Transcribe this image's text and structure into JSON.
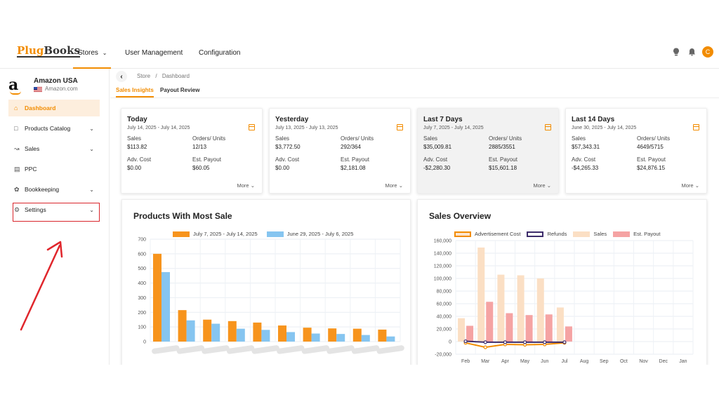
{
  "topnav": {
    "logo_part1": "Plug",
    "logo_part2": "Books",
    "stores_label": "Stores",
    "user_management_label": "User Management",
    "configuration_label": "Configuration",
    "avatar_initial": "C"
  },
  "store": {
    "name": "Amazon USA",
    "domain": "Amazon.com"
  },
  "sidebar": {
    "items": [
      {
        "label": "Dashboard",
        "icon": "home-icon",
        "active": true
      },
      {
        "label": "Products Catalog",
        "icon": "box-icon"
      },
      {
        "label": "Sales",
        "icon": "chart-line-icon"
      },
      {
        "label": "PPC",
        "icon": "card-icon"
      },
      {
        "label": "Bookkeeping",
        "icon": "settings-cog-icon"
      },
      {
        "label": "Settings",
        "icon": "gear-icon"
      }
    ]
  },
  "breadcrumb": {
    "store": "Store",
    "separator": "/",
    "page": "Dashboard"
  },
  "subtabs": [
    "Sales Insights",
    "Payout Review"
  ],
  "cards": [
    {
      "title": "Today",
      "range": "July 14, 2025 - July 14, 2025",
      "sales_label": "Sales",
      "sales": "$113.82",
      "orders_label": "Orders/ Units",
      "orders": "12/13",
      "adv_label": "Adv. Cost",
      "adv": "$0.00",
      "payout_label": "Est. Payout",
      "payout": "$60.05",
      "more": "More"
    },
    {
      "title": "Yesterday",
      "range": "July 13, 2025 - July 13, 2025",
      "sales_label": "Sales",
      "sales": "$3,772.50",
      "orders_label": "Orders/ Units",
      "orders": "292/364",
      "adv_label": "Adv. Cost",
      "adv": "$0.00",
      "payout_label": "Est. Payout",
      "payout": "$2,181.08",
      "more": "More"
    },
    {
      "title": "Last 7 Days",
      "range": "July 7, 2025 - July 14, 2025",
      "sales_label": "Sales",
      "sales": "$35,009.81",
      "orders_label": "Orders/ Units",
      "orders": "2885/3551",
      "adv_label": "Adv. Cost",
      "adv": "-$2,280.30",
      "payout_label": "Est. Payout",
      "payout": "$15,601.18",
      "more": "More"
    },
    {
      "title": "Last 14 Days",
      "range": "June 30, 2025 - July 14, 2025",
      "sales_label": "Sales",
      "sales": "$57,343.31",
      "orders_label": "Orders/ Units",
      "orders": "4649/5715",
      "adv_label": "Adv. Cost",
      "adv": "-$4,265.33",
      "payout_label": "Est. Payout",
      "payout": "$24,876.15",
      "more": "More"
    }
  ],
  "colors": {
    "accent": "#f28c00",
    "bar_current": "#f7941d",
    "bar_previous": "#86c5f0",
    "sales_bar": "#fbdfc4",
    "payout_bar": "#f5a3a3",
    "adv_line": "#f28c00",
    "refunds_line": "#3d2c6b",
    "highlight_box": "#d9252b"
  },
  "chart_data": [
    {
      "type": "bar",
      "title": "Products With Most Sale",
      "categories": [
        "",
        "",
        "",
        "",
        "",
        "",
        "",
        "",
        "",
        ""
      ],
      "ylim": [
        0,
        700
      ],
      "yticks": [
        "700",
        "600",
        "500",
        "400",
        "300",
        "200",
        "100",
        "0"
      ],
      "series": [
        {
          "name": "July 7, 2025 - July 14, 2025",
          "values": [
            600,
            215,
            150,
            140,
            130,
            110,
            95,
            90,
            88,
            82
          ]
        },
        {
          "name": "June 29, 2025 - July 6, 2025",
          "values": [
            475,
            145,
            122,
            88,
            80,
            65,
            55,
            52,
            45,
            35
          ]
        }
      ]
    },
    {
      "type": "bar",
      "title": "Sales Overview",
      "categories": [
        "Feb",
        "Mar",
        "Apr",
        "May",
        "Jun",
        "Jul",
        "Aug",
        "Sep",
        "Oct",
        "Nov",
        "Dec",
        "Jan"
      ],
      "ylim": [
        -20000,
        160000
      ],
      "yticks": [
        "160,000",
        "140,000",
        "120,000",
        "100,000",
        "80,000",
        "60,000",
        "40,000",
        "20,000",
        "0",
        "-20,000"
      ],
      "series": [
        {
          "name": "Advertisement Cost",
          "kind": "line",
          "values": [
            -2000,
            -9000,
            -4500,
            -5000,
            -4500,
            -2000,
            null,
            null,
            null,
            null,
            null,
            null
          ]
        },
        {
          "name": "Refunds",
          "kind": "line",
          "values": [
            500,
            -1000,
            -1000,
            -1000,
            -1000,
            -1000,
            null,
            null,
            null,
            null,
            null,
            null
          ]
        },
        {
          "name": "Sales",
          "kind": "bar",
          "values": [
            37000,
            149000,
            106000,
            105000,
            100000,
            54000,
            null,
            null,
            null,
            null,
            null,
            null
          ]
        },
        {
          "name": "Est. Payout",
          "kind": "bar",
          "values": [
            25000,
            63000,
            45000,
            42000,
            43000,
            24000,
            null,
            null,
            null,
            null,
            null,
            null
          ]
        }
      ]
    }
  ]
}
